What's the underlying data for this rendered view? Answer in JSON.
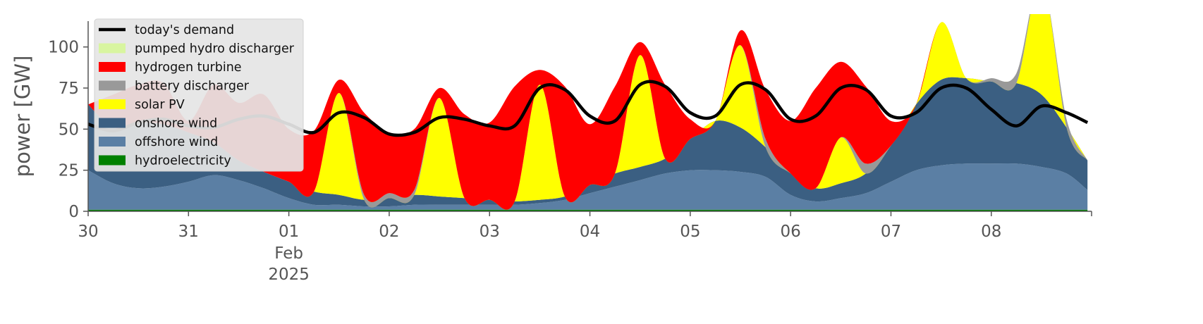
{
  "chart_data": {
    "type": "area",
    "title": "",
    "ylabel": "power [GW]",
    "ylim": [
      0,
      120
    ],
    "xlim": [
      "2025-01-30 00:00",
      "2025-02-08 23:59"
    ],
    "yticks": [
      0,
      25,
      50,
      75,
      100
    ],
    "xticks": [
      {
        "date": "2025-01-30",
        "label": "30"
      },
      {
        "date": "2025-01-31",
        "label": "31"
      },
      {
        "date": "2025-02-01",
        "label": "01",
        "sub": [
          "Feb",
          "2025"
        ]
      },
      {
        "date": "2025-02-02",
        "label": "02"
      },
      {
        "date": "2025-02-03",
        "label": "03"
      },
      {
        "date": "2025-02-04",
        "label": "04"
      },
      {
        "date": "2025-02-05",
        "label": "05"
      },
      {
        "date": "2025-02-06",
        "label": "06"
      },
      {
        "date": "2025-02-07",
        "label": "07"
      },
      {
        "date": "2025-02-08",
        "label": "08"
      }
    ],
    "grid": false,
    "legend_position": "top-left",
    "x": [
      "2025-01-30 00:00",
      "2025-01-30 06:00",
      "2025-01-30 12:00",
      "2025-01-30 18:00",
      "2025-01-31 00:00",
      "2025-01-31 06:00",
      "2025-01-31 12:00",
      "2025-01-31 18:00",
      "2025-02-01 00:00",
      "2025-02-01 06:00",
      "2025-02-01 12:00",
      "2025-02-01 18:00",
      "2025-02-02 00:00",
      "2025-02-02 06:00",
      "2025-02-02 12:00",
      "2025-02-02 18:00",
      "2025-02-03 00:00",
      "2025-02-03 06:00",
      "2025-02-03 12:00",
      "2025-02-03 18:00",
      "2025-02-04 00:00",
      "2025-02-04 06:00",
      "2025-02-04 12:00",
      "2025-02-04 18:00",
      "2025-02-05 00:00",
      "2025-02-05 06:00",
      "2025-02-05 12:00",
      "2025-02-05 18:00",
      "2025-02-06 00:00",
      "2025-02-06 06:00",
      "2025-02-06 12:00",
      "2025-02-06 18:00",
      "2025-02-07 00:00",
      "2025-02-07 06:00",
      "2025-02-07 12:00",
      "2025-02-07 18:00",
      "2025-02-08 00:00",
      "2025-02-08 06:00",
      "2025-02-08 12:00",
      "2025-02-08 18:00",
      "2025-02-08 23:00"
    ],
    "stack_series": [
      {
        "name": "hydroelectricity",
        "color": "#008000",
        "values": [
          1,
          1,
          1,
          1,
          1,
          1,
          1,
          1,
          1,
          1,
          1,
          1,
          1,
          1,
          1,
          1,
          1,
          1,
          1,
          1,
          1,
          1,
          1,
          1,
          1,
          1,
          1,
          1,
          1,
          1,
          1,
          1,
          1,
          1,
          1,
          1,
          1,
          1,
          1,
          1,
          1
        ]
      },
      {
        "name": "offshore wind",
        "color": "#5b7fa4",
        "values": [
          24,
          16,
          13,
          14,
          17,
          21,
          18,
          13,
          7,
          3,
          3,
          2,
          2,
          3,
          3,
          3,
          3,
          3,
          4,
          6,
          10,
          14,
          18,
          22,
          24,
          24,
          23,
          20,
          9,
          5,
          7,
          10,
          17,
          24,
          27,
          28,
          28,
          28,
          26,
          22,
          12
        ]
      },
      {
        "name": "onshore wind",
        "color": "#3b5f82",
        "values": [
          40,
          34,
          40,
          38,
          30,
          20,
          12,
          10,
          10,
          8,
          6,
          4,
          5,
          6,
          5,
          4,
          3,
          2,
          2,
          2,
          5,
          8,
          8,
          9,
          19,
          30,
          27,
          18,
          13,
          8,
          9,
          12,
          22,
          40,
          52,
          52,
          50,
          49,
          44,
          28,
          18
        ]
      },
      {
        "name": "solar PV",
        "color": "#ffff00",
        "values": [
          0,
          0,
          0,
          0,
          0,
          0,
          0,
          0,
          0,
          0,
          62,
          0,
          0,
          0,
          60,
          0,
          0,
          0,
          70,
          0,
          0,
          0,
          68,
          0,
          0,
          0,
          50,
          0,
          0,
          0,
          28,
          0,
          0,
          0,
          35,
          0,
          0,
          0,
          70,
          0,
          0
        ]
      },
      {
        "name": "battery discharger",
        "color": "#999999",
        "values": [
          0,
          0,
          0,
          0,
          0,
          0,
          0,
          0,
          0,
          0,
          0,
          3,
          3,
          3,
          0,
          0,
          0,
          0,
          0,
          0,
          0,
          0,
          0,
          0,
          0,
          0,
          0,
          5,
          0,
          0,
          0,
          6,
          0,
          0,
          0,
          0,
          2,
          6,
          0,
          5,
          0
        ]
      },
      {
        "name": "hydrogen turbine",
        "color": "#ff0000",
        "values": [
          0,
          20,
          23,
          25,
          7,
          35,
          35,
          47,
          32,
          37,
          8,
          50,
          37,
          37,
          6,
          51,
          47,
          70,
          9,
          67,
          37,
          53,
          8,
          45,
          12,
          0,
          9,
          30,
          32,
          61,
          46,
          47,
          15,
          0,
          0,
          0,
          0,
          0,
          0,
          0,
          0
        ]
      },
      {
        "name": "pumped hydro discharger",
        "color": "#d8f5a0",
        "values": [
          0,
          0,
          0,
          0,
          0,
          0,
          0,
          0,
          0,
          0,
          0,
          0,
          0,
          0,
          0,
          0,
          0,
          0,
          0,
          0,
          0,
          0,
          0,
          0,
          0,
          0,
          0,
          0,
          0,
          0,
          0,
          0,
          0,
          0,
          0,
          0,
          0,
          0,
          0,
          0,
          0
        ]
      }
    ],
    "demand_series": {
      "name": "today's demand",
      "color": "#000000",
      "values": [
        53,
        49,
        54,
        56,
        52,
        51,
        56,
        58,
        53,
        48,
        60,
        57,
        47,
        48,
        57,
        56,
        52,
        52,
        75,
        74,
        58,
        55,
        77,
        76,
        60,
        58,
        77,
        74,
        56,
        58,
        75,
        74,
        58,
        60,
        75,
        75,
        62,
        52,
        64,
        60,
        54
      ]
    },
    "legend": [
      "today's demand",
      "pumped hydro discharger",
      "hydrogen turbine",
      "battery discharger",
      "solar PV",
      "onshore wind",
      "offshore wind",
      "hydroelectricity"
    ]
  }
}
